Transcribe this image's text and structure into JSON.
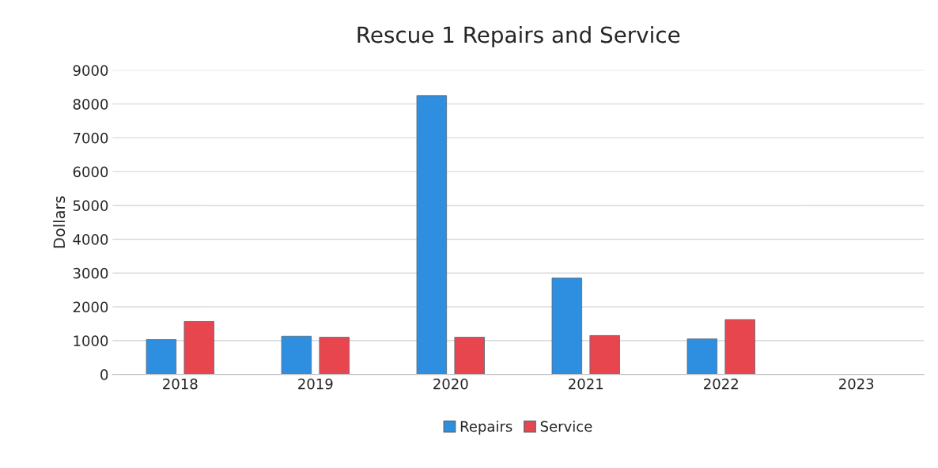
{
  "chart_data": {
    "type": "bar",
    "title": "Rescue 1 Repairs and Service",
    "ylabel": "Dollars",
    "categories": [
      "2018",
      "2019",
      "2020",
      "2021",
      "2022",
      "2023"
    ],
    "series": [
      {
        "name": "Repairs",
        "color": "#2e8fe0",
        "values": [
          1030,
          1130,
          8250,
          2850,
          1050,
          null
        ]
      },
      {
        "name": "Service",
        "color": "#e8464f",
        "values": [
          1570,
          1100,
          1100,
          1150,
          1620,
          null
        ]
      }
    ],
    "ylim": [
      0,
      9000
    ],
    "yticks": [
      0,
      1000,
      2000,
      3000,
      4000,
      5000,
      6000,
      7000,
      8000,
      9000
    ],
    "grid": "y",
    "legend": "bottom"
  }
}
